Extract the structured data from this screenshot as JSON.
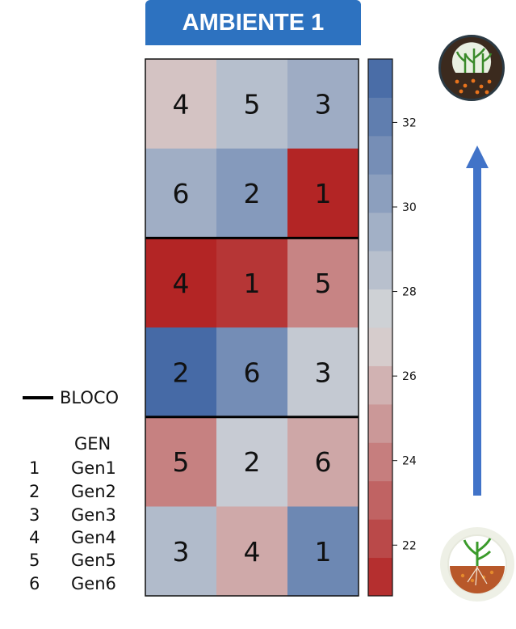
{
  "title": "AMBIENTE 1",
  "legend": {
    "bloco_label": "BLOCO",
    "gen_title": "GEN",
    "gens": [
      {
        "num": "1",
        "name": "Gen1"
      },
      {
        "num": "2",
        "name": "Gen2"
      },
      {
        "num": "3",
        "name": "Gen3"
      },
      {
        "num": "4",
        "name": "Gen4"
      },
      {
        "num": "5",
        "name": "Gen5"
      },
      {
        "num": "6",
        "name": "Gen6"
      }
    ]
  },
  "icons": {
    "top": "plant-soil-icon",
    "bottom": "plant-roots-icon"
  },
  "colors": {
    "high": "#3f65a3",
    "mid": "#d9d9d9",
    "low": "#b22222",
    "arrow": "#4173c8"
  },
  "chart_data": {
    "type": "heatmap",
    "rows": [
      {
        "labels": [
          "4",
          "5",
          "3"
        ],
        "values": [
          26.4,
          28.6,
          29.6
        ]
      },
      {
        "labels": [
          "6",
          "2",
          "1"
        ],
        "values": [
          29.5,
          30.6,
          20.9
        ]
      },
      {
        "labels": [
          "4",
          "1",
          "5"
        ],
        "values": [
          20.9,
          21.5,
          24.2
        ]
      },
      {
        "labels": [
          "2",
          "6",
          "3"
        ],
        "values": [
          33.2,
          31.3,
          28.0
        ]
      },
      {
        "labels": [
          "5",
          "2",
          "6"
        ],
        "values": [
          24.1,
          27.9,
          25.4
        ]
      },
      {
        "labels": [
          "3",
          "4",
          "1"
        ],
        "values": [
          28.8,
          25.5,
          31.6
        ]
      }
    ],
    "block_separators_after_rows": [
      2,
      4
    ],
    "colorbar": {
      "min": 20.8,
      "max": 33.5,
      "ticks": [
        "22",
        "24",
        "26",
        "28",
        "30",
        "32"
      ],
      "tick_values": [
        22,
        24,
        26,
        28,
        30,
        32
      ],
      "bins": 14
    }
  }
}
